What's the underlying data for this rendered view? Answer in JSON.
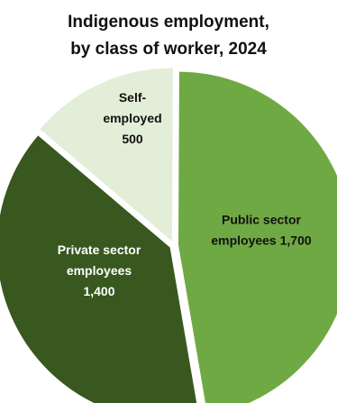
{
  "title_lines": [
    "Indigenous employment,",
    "by class of worker, 2024"
  ],
  "chart_data": {
    "type": "pie",
    "title": "Indigenous employment, by class of worker, 2024",
    "slices": [
      {
        "label": "Public sector employees",
        "value": 1700,
        "color": "#6fa943",
        "label_color": "#111111",
        "label_lines": [
          "Public sector",
          "employees 1,700"
        ]
      },
      {
        "label": "Private sector employees",
        "value": 1400,
        "color": "#38581f",
        "label_color": "#ffffff",
        "label_lines": [
          "Private sector",
          "employees",
          "1,400"
        ]
      },
      {
        "label": "Self-employed",
        "value": 500,
        "color": "#e3eed8",
        "label_color": "#111111",
        "label_lines": [
          "Self-",
          "employed",
          "500"
        ]
      }
    ]
  }
}
